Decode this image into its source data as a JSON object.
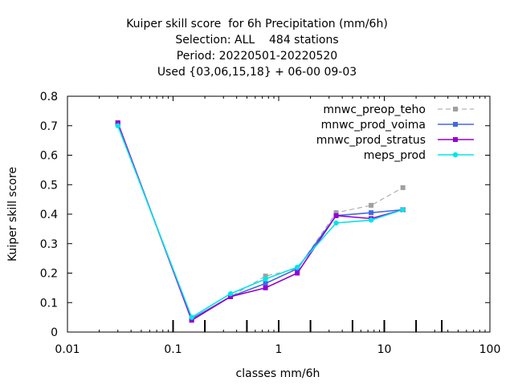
{
  "title_lines": [
    "Kuiper skill score  for 6h Precipitation (mm/6h)",
    "Selection: ALL    484 stations",
    "Period: 20220501-20220520",
    "Used {03,06,15,18} + 06-00 09-03"
  ],
  "chart_data": {
    "type": "line",
    "xlabel": "classes mm/6h",
    "ylabel": "Kuiper skill score",
    "x_scale": "log",
    "xlim": [
      0.01,
      100
    ],
    "ylim": [
      0,
      0.8
    ],
    "x_ticks": [
      {
        "value": 0.01,
        "label": "0.01"
      },
      {
        "value": 0.1,
        "label": "0.1"
      },
      {
        "value": 1,
        "label": "1"
      },
      {
        "value": 10,
        "label": "10"
      },
      {
        "value": 100,
        "label": "100"
      }
    ],
    "y_ticks": [
      {
        "value": 0,
        "label": "0"
      },
      {
        "value": 0.1,
        "label": "0.1"
      },
      {
        "value": 0.2,
        "label": "0.2"
      },
      {
        "value": 0.3,
        "label": "0.3"
      },
      {
        "value": 0.4,
        "label": "0.4"
      },
      {
        "value": 0.5,
        "label": "0.5"
      },
      {
        "value": 0.6,
        "label": "0.6"
      },
      {
        "value": 0.7,
        "label": "0.7"
      },
      {
        "value": 0.8,
        "label": "0.8"
      }
    ],
    "class_threshold_marks": [
      0.1,
      0.2,
      0.5,
      1,
      2,
      5,
      10,
      20,
      35
    ],
    "legend_position": "top-right",
    "grid": false,
    "series": [
      {
        "name": "mnwc_preop_teho",
        "color": "#a0a0a0",
        "dash": true,
        "x": [
          0.03,
          0.15,
          0.35,
          0.75,
          1.5,
          3.5,
          7.5,
          15
        ],
        "y": [
          0.71,
          0.045,
          0.12,
          0.19,
          0.215,
          0.405,
          0.43,
          0.49
        ]
      },
      {
        "name": "mnwc_prod_voima",
        "color": "#4169e1",
        "dash": false,
        "x": [
          0.03,
          0.15,
          0.35,
          0.75,
          1.5,
          3.5,
          7.5,
          15
        ],
        "y": [
          0.705,
          0.045,
          0.12,
          0.165,
          0.215,
          0.395,
          0.405,
          0.415
        ]
      },
      {
        "name": "mnwc_prod_stratus",
        "color": "#9400d3",
        "dash": false,
        "x": [
          0.03,
          0.15,
          0.35,
          0.75,
          1.5,
          3.5,
          7.5,
          15
        ],
        "y": [
          0.71,
          0.04,
          0.12,
          0.15,
          0.2,
          0.395,
          0.385,
          0.415
        ]
      },
      {
        "name": "meps_prod",
        "color": "#00e5e5",
        "dash": false,
        "x": [
          0.03,
          0.15,
          0.35,
          0.75,
          1.5,
          3.5,
          7.5,
          15
        ],
        "y": [
          0.7,
          0.05,
          0.13,
          0.18,
          0.22,
          0.37,
          0.38,
          0.415
        ]
      }
    ]
  }
}
